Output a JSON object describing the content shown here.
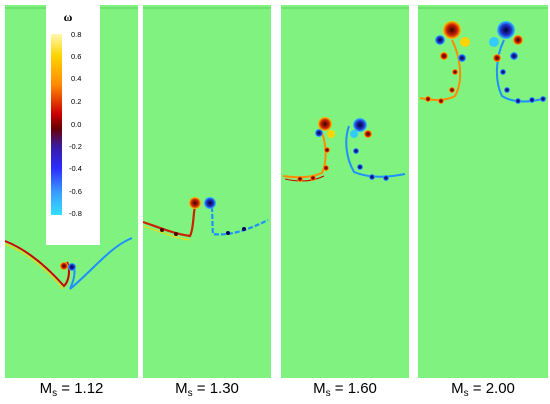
{
  "colorbar": {
    "symbol": "ω",
    "ticks": [
      "0.8",
      "0.6",
      "0.4",
      "0.2",
      "0.0",
      "-0.2",
      "-0.4",
      "-0.6",
      "-0.8"
    ]
  },
  "panels": [
    {
      "symbol": "M",
      "subscript": "s",
      "equals": "= 1.12"
    },
    {
      "symbol": "M",
      "subscript": "s",
      "equals": "= 1.30"
    },
    {
      "symbol": "M",
      "subscript": "s",
      "equals": "= 1.60"
    },
    {
      "symbol": "M",
      "subscript": "s",
      "equals": "= 2.00"
    }
  ],
  "colors": {
    "field": "#7ff27f",
    "positive_vorticity": "#ff8c00",
    "negative_vorticity": "#1e90ff"
  }
}
